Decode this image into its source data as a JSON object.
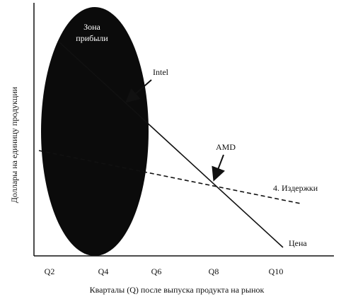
{
  "zone_label": [
    "Зона",
    "прибыли"
  ],
  "annotations": {
    "intel": "Intel",
    "amd": "AMD",
    "costs": "4. Издержки",
    "price": "Цена"
  },
  "x_ticks": [
    "Q2",
    "Q4",
    "Q6",
    "Q8",
    "Q10"
  ],
  "x_axis_label": "Кварталы (Q) после выпуска продукта на рынок",
  "y_axis_label": "Доллары на единицу продукции"
}
